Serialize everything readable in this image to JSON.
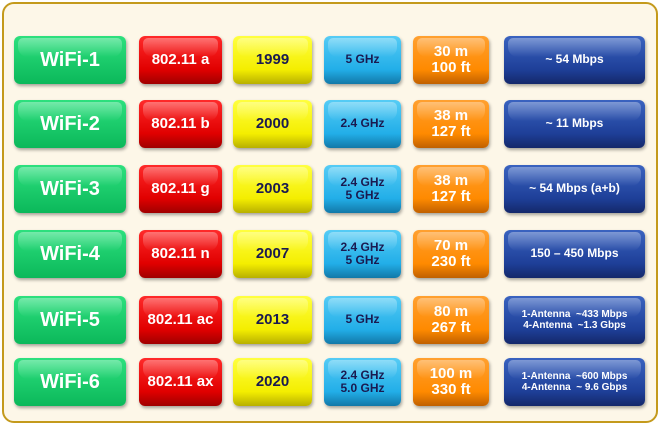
{
  "rows": [
    {
      "generation": "WiFi-1",
      "standard": "802.11 a",
      "year": "1999",
      "frequency": [
        "5 GHz"
      ],
      "range": [
        "30 m",
        "100 ft"
      ],
      "speed": [
        "~ 54 Mbps"
      ]
    },
    {
      "generation": "WiFi-2",
      "standard": "802.11 b",
      "year": "2000",
      "frequency": [
        "2.4 GHz"
      ],
      "range": [
        "38 m",
        "127 ft"
      ],
      "speed": [
        "~ 11 Mbps"
      ]
    },
    {
      "generation": "WiFi-3",
      "standard": "802.11 g",
      "year": "2003",
      "frequency": [
        "2.4 GHz",
        "5 GHz"
      ],
      "range": [
        "38 m",
        "127 ft"
      ],
      "speed": [
        "~ 54 Mbps (a+b)"
      ]
    },
    {
      "generation": "WiFi-4",
      "standard": "802.11 n",
      "year": "2007",
      "frequency": [
        "2.4 GHz",
        "5 GHz"
      ],
      "range": [
        "70 m",
        "230 ft"
      ],
      "speed": [
        "150 – 450 Mbps"
      ]
    },
    {
      "generation": "WiFi-5",
      "standard": "802.11 ac",
      "year": "2013",
      "frequency": [
        "5 GHz"
      ],
      "range": [
        "80 m",
        "267 ft"
      ],
      "speed": [
        "1-Antenna  ~433 Mbps",
        "4-Antenna  ~1.3 Gbps"
      ]
    },
    {
      "generation": "WiFi-6",
      "standard": "802.11 ax",
      "year": "2020",
      "frequency": [
        "2.4 GHz",
        "5.0 GHz"
      ],
      "range": [
        "100 m",
        "330 ft"
      ],
      "speed": [
        "1-Antenna  ~600 Mbps",
        "4-Antenna  ~ 9.6 Gbps"
      ]
    }
  ],
  "colors": {
    "generation": "#0bb85a",
    "standard": "#e00000",
    "year": "#f4ee00",
    "frequency": "#22aee8",
    "range": "#ff8a00",
    "speed": "#1e3f98",
    "border": "#c49a1c"
  }
}
